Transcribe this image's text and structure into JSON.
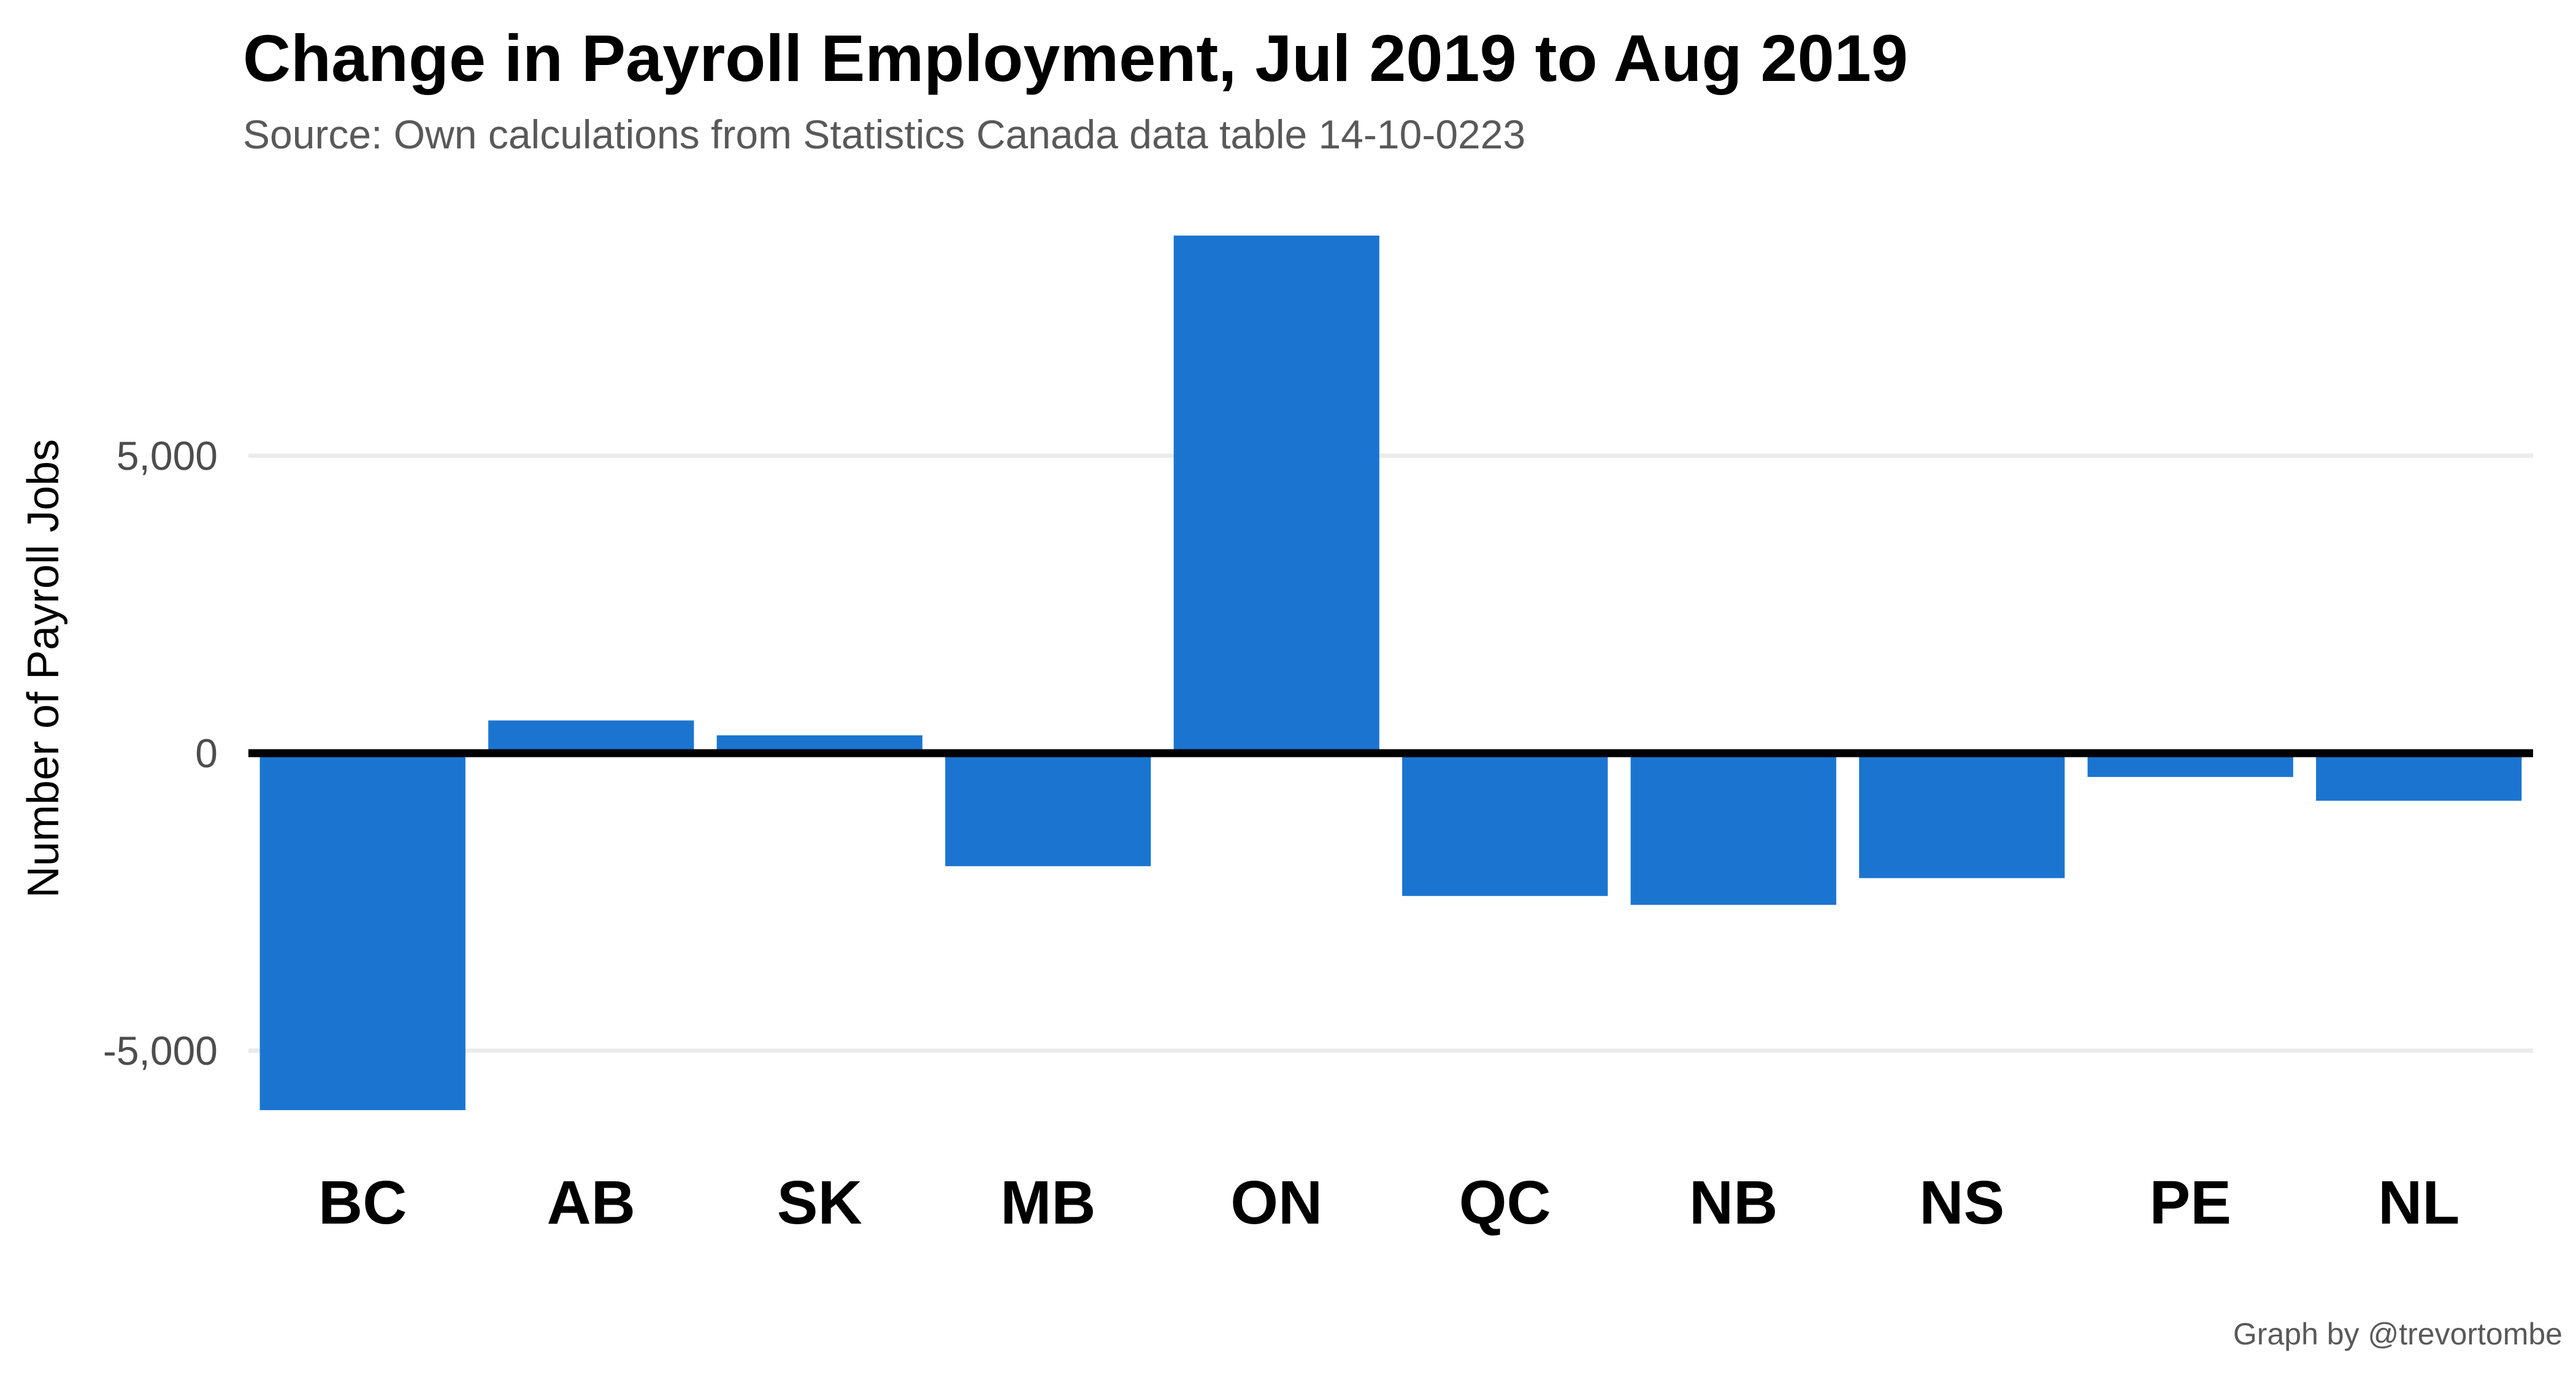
{
  "chart_data": {
    "type": "bar",
    "title": "Change in Payroll Employment, Jul 2019 to Aug 2019",
    "subtitle": "Source: Own calculations from Statistics Canada data table 14-10-0223",
    "caption": "Graph by @trevortombe",
    "xlabel": "",
    "ylabel": "Number of Payroll Jobs",
    "categories": [
      "BC",
      "AB",
      "SK",
      "MB",
      "ON",
      "QC",
      "NB",
      "NS",
      "PE",
      "NL"
    ],
    "values": [
      -6000,
      550,
      300,
      -1900,
      8700,
      -2400,
      -2550,
      -2100,
      -400,
      -800
    ],
    "yticks": [
      -5000,
      0,
      5000
    ],
    "ytick_labels": [
      "-5,000",
      "0",
      "5,000"
    ],
    "ylim": [
      -6700,
      9300
    ],
    "grid": true,
    "legend": "none",
    "bar_color": "#1b75d0",
    "zero_line_color": "#000000",
    "grid_color": "#ebebeb"
  }
}
